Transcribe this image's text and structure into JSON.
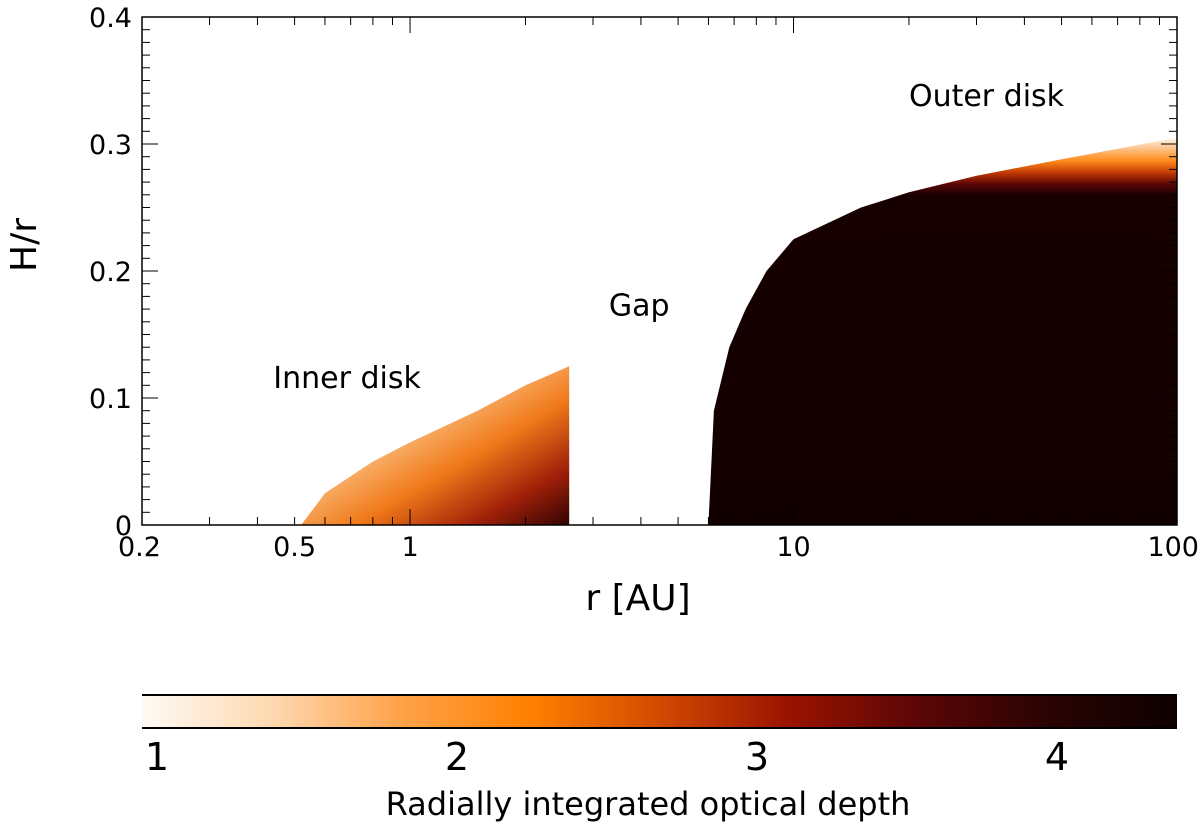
{
  "chart_data": {
    "type": "heatmap",
    "x_scale": "log",
    "xlim": [
      0.2,
      100
    ],
    "ylim": [
      0,
      0.4
    ],
    "xlabel": "r [AU]",
    "ylabel": "H/r",
    "x_tick_labels": [
      "0.2",
      "0.5",
      "1",
      "10",
      "100"
    ],
    "x_tick_values": [
      0.2,
      0.5,
      1,
      10,
      100
    ],
    "y_tick_labels": [
      "0",
      "0.1",
      "0.2",
      "0.3",
      "0.4"
    ],
    "y_tick_values": [
      0,
      0.1,
      0.2,
      0.3,
      0.4
    ],
    "regions": [
      {
        "label": "Inner disk",
        "r_start": 0.52,
        "r_end": 2.6,
        "surface_H_over_r": [
          [
            0.52,
            0.0
          ],
          [
            0.6,
            0.025
          ],
          [
            0.8,
            0.05
          ],
          [
            1.0,
            0.065
          ],
          [
            1.5,
            0.09
          ],
          [
            2.0,
            0.11
          ],
          [
            2.6,
            0.125
          ]
        ],
        "label_pos": [
          0.44,
          0.108
        ]
      },
      {
        "label": "Gap",
        "r_start": 2.6,
        "r_end": 6.0,
        "label_pos": [
          3.3,
          0.165
        ]
      },
      {
        "label": "Outer disk",
        "r_start": 6.0,
        "r_end": 100,
        "surface_H_over_r": [
          [
            6.0,
            0.0
          ],
          [
            6.2,
            0.09
          ],
          [
            6.8,
            0.14
          ],
          [
            7.5,
            0.17
          ],
          [
            8.5,
            0.2
          ],
          [
            10,
            0.225
          ],
          [
            15,
            0.25
          ],
          [
            20,
            0.262
          ],
          [
            30,
            0.275
          ],
          [
            50,
            0.288
          ],
          [
            100,
            0.305
          ]
        ],
        "label_pos": [
          20,
          0.33
        ]
      }
    ],
    "colorbar": {
      "label": "Radially integrated optical depth",
      "tick_labels": [
        "1",
        "2",
        "3",
        "4"
      ],
      "tick_values": [
        1,
        2,
        3,
        4
      ],
      "range": [
        0.95,
        4.4
      ],
      "colormap": [
        "#fffaf5",
        "#fdd9b0",
        "#ffa24a",
        "#ff8000",
        "#d24a00",
        "#9a1300",
        "#5c0606",
        "#2a0303",
        "#0e0000"
      ]
    }
  }
}
